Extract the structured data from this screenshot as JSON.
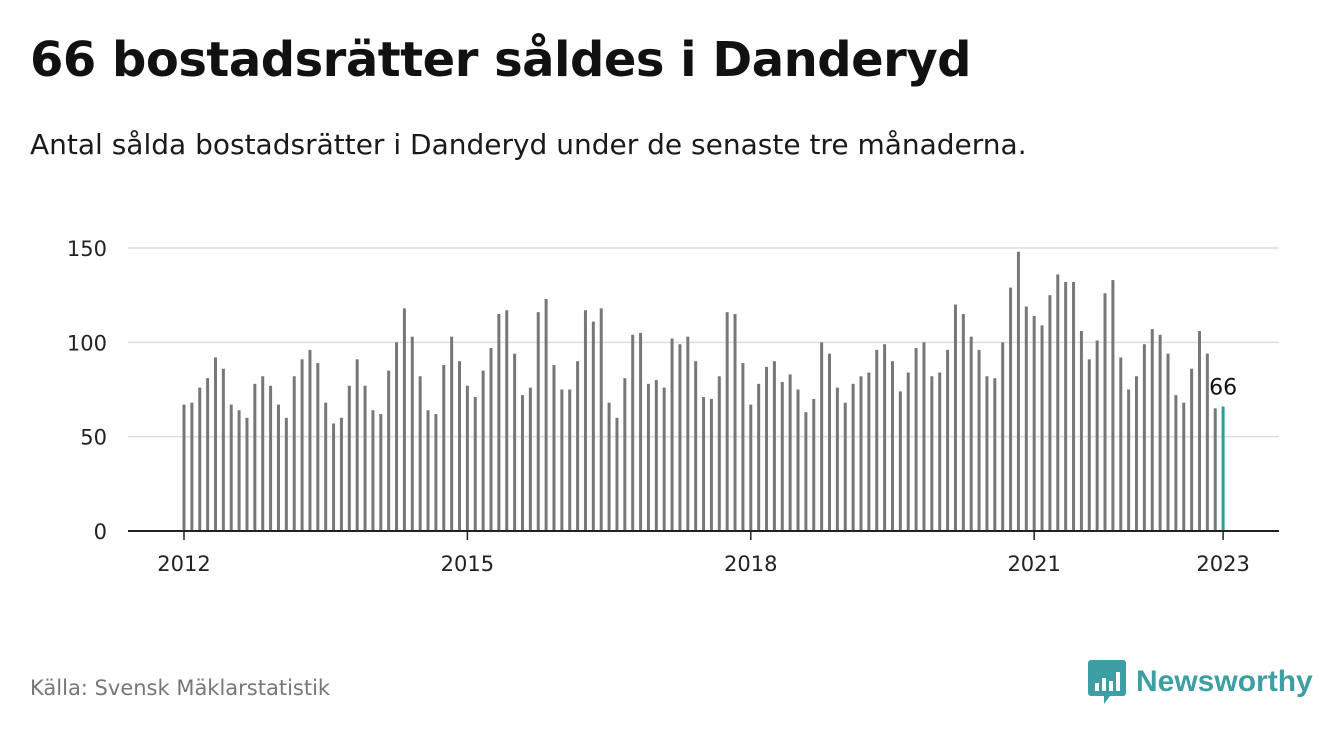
{
  "header": {
    "title": "66 bostadsrätter såldes i Danderyd",
    "subtitle": "Antal sålda bostadsrätter i Danderyd under de senaste tre månaderna."
  },
  "footer": {
    "source": "Källa: Svensk Mäklarstatistik",
    "brand": "Newsworthy"
  },
  "colors": {
    "bar": "#777777",
    "highlight": "#2aa198",
    "grid": "#dddddd",
    "axis": "#222222",
    "brand": "#3d9ea3"
  },
  "icons": {
    "brand_logo": "bar-chart-speech-bubble-icon"
  },
  "chart_data": {
    "type": "bar",
    "title": "",
    "xlabel": "",
    "ylabel": "",
    "ylim": [
      0,
      150
    ],
    "yticks": [
      0,
      50,
      100,
      150
    ],
    "xticks": [
      {
        "label": "2012",
        "month_index": 0
      },
      {
        "label": "2015",
        "month_index": 36
      },
      {
        "label": "2018",
        "month_index": 72
      },
      {
        "label": "2021",
        "month_index": 108
      },
      {
        "label": "2023",
        "month_index": 132
      }
    ],
    "start": "2012-01",
    "end": "2023-01",
    "frequency": "monthly",
    "grid": true,
    "highlight_last": true,
    "last_value_label": "66",
    "values": [
      67,
      68,
      76,
      81,
      92,
      86,
      67,
      64,
      60,
      78,
      82,
      77,
      67,
      60,
      82,
      91,
      96,
      89,
      68,
      57,
      60,
      77,
      91,
      77,
      64,
      62,
      85,
      100,
      118,
      103,
      82,
      64,
      62,
      88,
      103,
      90,
      77,
      71,
      85,
      97,
      115,
      117,
      94,
      72,
      76,
      116,
      123,
      88,
      75,
      75,
      90,
      117,
      111,
      118,
      68,
      60,
      81,
      104,
      105,
      78,
      80,
      76,
      102,
      99,
      103,
      90,
      71,
      70,
      82,
      116,
      115,
      89,
      67,
      78,
      87,
      90,
      79,
      83,
      75,
      63,
      70,
      100,
      94,
      76,
      68,
      78,
      82,
      84,
      96,
      99,
      90,
      74,
      84,
      97,
      100,
      82,
      84,
      96,
      120,
      115,
      103,
      96,
      82,
      81,
      100,
      129,
      148,
      119,
      114,
      109,
      125,
      136,
      132,
      132,
      106,
      91,
      101,
      126,
      133,
      92,
      75,
      82,
      99,
      107,
      104,
      94,
      72,
      68,
      86,
      106,
      94,
      65,
      66
    ]
  }
}
